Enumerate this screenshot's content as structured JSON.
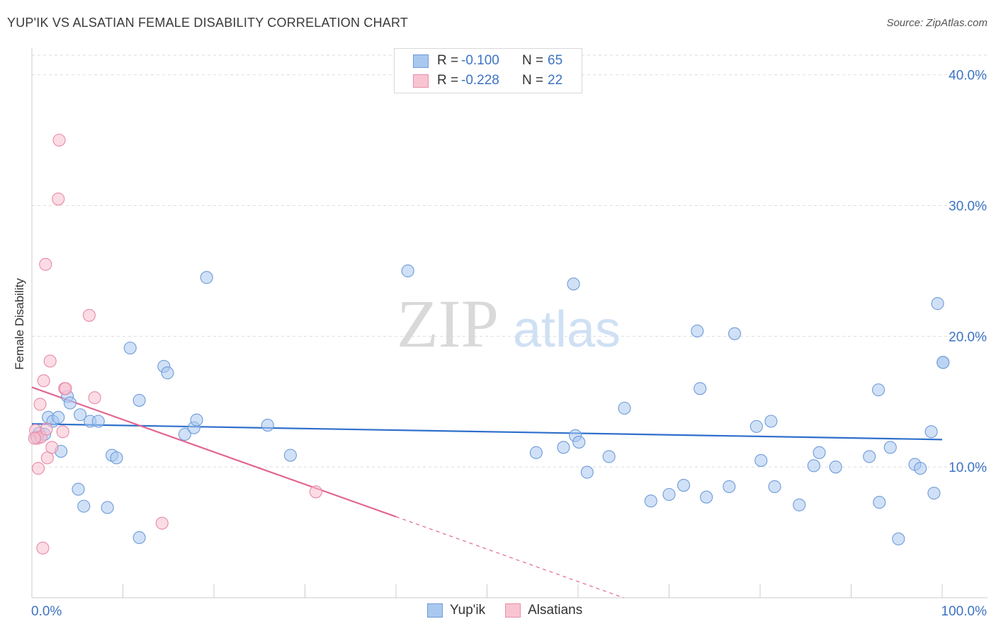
{
  "title": "YUP'IK VS ALSATIAN FEMALE DISABILITY CORRELATION CHART",
  "source": "Source: ZipAtlas.com",
  "watermark": {
    "zip": "ZIP",
    "atlas": "atlas"
  },
  "legend": {
    "r_label": "R =",
    "n_label": "N =",
    "rows": [
      {
        "name": "Yup'ik",
        "r": "-0.100",
        "n": "65",
        "color": "#a9c8f0",
        "border": "#6f9bd8"
      },
      {
        "name": "Alsatians",
        "r": "-0.228",
        "n": "22",
        "color": "#f9c4d2",
        "border": "#e690a8"
      }
    ]
  },
  "colors": {
    "blue_fill": "#a9c8f0",
    "blue_stroke": "#6f9bd8",
    "blue_line": "#2e6fcc",
    "pink_fill": "#f7bfd0",
    "pink_stroke": "#e88aa6",
    "pink_line": "#e2668f",
    "tick_label": "#3d73c4",
    "grid": "#dddddd"
  },
  "chart_data": {
    "type": "scatter",
    "title": "YUP'IK VS ALSATIAN FEMALE DISABILITY CORRELATION CHART",
    "xlabel": "",
    "ylabel": "Female Disability",
    "xlim": [
      0,
      100
    ],
    "ylim": [
      0,
      41.5
    ],
    "x_tick_labels": [
      "0.0%",
      "100.0%"
    ],
    "y_ticks": [
      10,
      20,
      30,
      40
    ],
    "y_tick_labels": [
      "10.0%",
      "20.0%",
      "30.0%",
      "40.0%"
    ],
    "series": [
      {
        "name": "Yup'ik",
        "points": [
          [
            0.5,
            12.3
          ],
          [
            0.8,
            12.6
          ],
          [
            1.4,
            12.5
          ],
          [
            1.8,
            13.8
          ],
          [
            2.3,
            13.5
          ],
          [
            2.9,
            13.8
          ],
          [
            3.2,
            11.2
          ],
          [
            3.9,
            15.4
          ],
          [
            4.2,
            14.9
          ],
          [
            5.1,
            8.3
          ],
          [
            5.3,
            14.0
          ],
          [
            5.7,
            7.0
          ],
          [
            6.4,
            13.5
          ],
          [
            7.3,
            13.5
          ],
          [
            8.3,
            6.9
          ],
          [
            8.8,
            10.9
          ],
          [
            9.3,
            10.7
          ],
          [
            10.8,
            19.1
          ],
          [
            11.8,
            4.6
          ],
          [
            11.8,
            15.1
          ],
          [
            14.5,
            17.7
          ],
          [
            14.9,
            17.2
          ],
          [
            16.8,
            12.5
          ],
          [
            17.8,
            13.0
          ],
          [
            18.1,
            13.6
          ],
          [
            19.2,
            24.5
          ],
          [
            25.9,
            13.2
          ],
          [
            28.4,
            10.9
          ],
          [
            41.3,
            25.0
          ],
          [
            55.4,
            11.1
          ],
          [
            58.4,
            11.5
          ],
          [
            59.5,
            24.0
          ],
          [
            59.7,
            12.4
          ],
          [
            60.1,
            11.9
          ],
          [
            61.0,
            9.6
          ],
          [
            63.4,
            10.8
          ],
          [
            65.1,
            14.5
          ],
          [
            68.0,
            7.4
          ],
          [
            70.0,
            7.9
          ],
          [
            71.6,
            8.6
          ],
          [
            73.1,
            20.4
          ],
          [
            73.4,
            16.0
          ],
          [
            74.1,
            7.7
          ],
          [
            76.6,
            8.5
          ],
          [
            77.2,
            20.2
          ],
          [
            79.6,
            13.1
          ],
          [
            80.1,
            10.5
          ],
          [
            81.2,
            13.5
          ],
          [
            81.6,
            8.5
          ],
          [
            84.3,
            7.1
          ],
          [
            85.9,
            10.1
          ],
          [
            86.5,
            11.1
          ],
          [
            88.3,
            10.0
          ],
          [
            92.0,
            10.8
          ],
          [
            93.0,
            15.9
          ],
          [
            93.1,
            7.3
          ],
          [
            94.3,
            11.5
          ],
          [
            95.2,
            4.5
          ],
          [
            97.0,
            10.2
          ],
          [
            97.6,
            9.9
          ],
          [
            98.8,
            12.7
          ],
          [
            99.1,
            8.0
          ],
          [
            99.5,
            22.5
          ],
          [
            100.1,
            18.0
          ],
          [
            100.1,
            18.0
          ]
        ]
      },
      {
        "name": "Alsatians",
        "points": [
          [
            0.4,
            12.8
          ],
          [
            0.6,
            12.2
          ],
          [
            0.7,
            9.9
          ],
          [
            0.9,
            14.8
          ],
          [
            1.0,
            12.3
          ],
          [
            1.2,
            3.8
          ],
          [
            1.3,
            16.6
          ],
          [
            1.5,
            25.5
          ],
          [
            1.6,
            12.9
          ],
          [
            1.7,
            10.7
          ],
          [
            2.0,
            18.1
          ],
          [
            2.2,
            11.5
          ],
          [
            2.9,
            30.5
          ],
          [
            3.0,
            35.0
          ],
          [
            3.4,
            12.7
          ],
          [
            3.6,
            16.0
          ],
          [
            3.7,
            16.0
          ],
          [
            6.3,
            21.6
          ],
          [
            6.9,
            15.3
          ],
          [
            14.3,
            5.7
          ],
          [
            31.2,
            8.1
          ],
          [
            0.3,
            12.2
          ]
        ]
      }
    ],
    "trend_lines": [
      {
        "series": "Yup'ik",
        "x0": 0,
        "y0": 13.3,
        "x1": 100,
        "y1": 12.1,
        "dash_from": null
      },
      {
        "series": "Alsatians",
        "x0": 0,
        "y0": 16.1,
        "x1": 40.0,
        "y1": 6.2,
        "dash_to_x": 65.0,
        "dash_to_y": 0
      }
    ]
  }
}
